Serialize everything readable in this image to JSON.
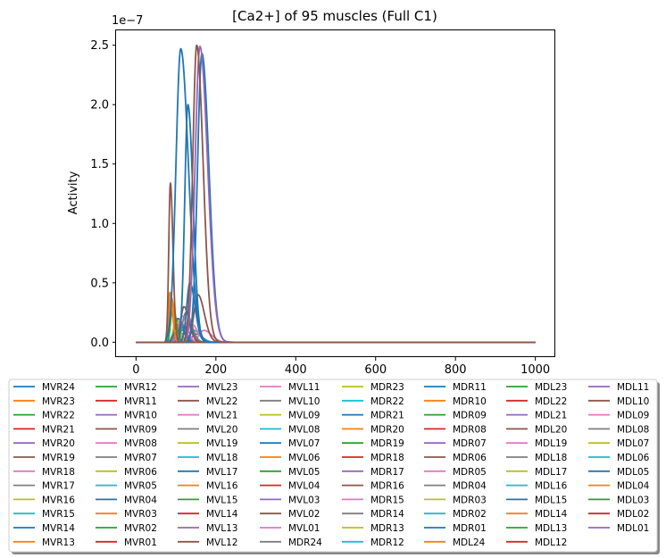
{
  "chart_data": {
    "type": "line",
    "title": "[Ca2+] of 95 muscles (Full C1)",
    "xlabel": "",
    "ylabel": "Activity",
    "y_offset_text": "1e−7",
    "y_scale_factor": 1e-07,
    "xlim": [
      -50,
      1050
    ],
    "ylim": [
      -0.125,
      2.625
    ],
    "x_ticks": [
      0,
      200,
      400,
      600,
      800,
      1000
    ],
    "y_ticks": [
      0.0,
      0.5,
      1.0,
      1.5,
      2.0,
      2.5
    ],
    "y_tick_labels": [
      "0.0",
      "0.5",
      "1.0",
      "1.5",
      "2.0",
      "2.5"
    ],
    "x_tick_labels": [
      "0",
      "200",
      "400",
      "600",
      "800",
      "1000"
    ],
    "grid": false,
    "legend_placement": "below plot, 8 columns",
    "x_end": 1000,
    "color_cycle": [
      "#1f77b4",
      "#ff7f0e",
      "#2ca02c",
      "#d62728",
      "#9467bd",
      "#8c564b",
      "#e377c2",
      "#7f7f7f",
      "#bcbd22",
      "#17becf"
    ],
    "series_names": [
      "MVR24",
      "MVR23",
      "MVR22",
      "MVR21",
      "MVR20",
      "MVR19",
      "MVR18",
      "MVR17",
      "MVR16",
      "MVR15",
      "MVR14",
      "MVR13",
      "MVR12",
      "MVR11",
      "MVR10",
      "MVR09",
      "MVR08",
      "MVR07",
      "MVR06",
      "MVR05",
      "MVR04",
      "MVR03",
      "MVR02",
      "MVR01",
      "MVL23",
      "MVL22",
      "MVL21",
      "MVL20",
      "MVL19",
      "MVL18",
      "MVL17",
      "MVL16",
      "MVL15",
      "MVL14",
      "MVL13",
      "MVL12",
      "MVL11",
      "MVL10",
      "MVL09",
      "MVL08",
      "MVL07",
      "MVL06",
      "MVL05",
      "MVL04",
      "MVL03",
      "MVL02",
      "MVL01",
      "MDR24",
      "MDR23",
      "MDR22",
      "MDR21",
      "MDR20",
      "MDR19",
      "MDR18",
      "MDR17",
      "MDR16",
      "MDR15",
      "MDR14",
      "MDR13",
      "MDR12",
      "MDR11",
      "MDR10",
      "MDR09",
      "MDR08",
      "MDR07",
      "MDR06",
      "MDR05",
      "MDR04",
      "MDR03",
      "MDR02",
      "MDR01",
      "MDL24",
      "MDL23",
      "MDL22",
      "MDL21",
      "MDL20",
      "MDL19",
      "MDL18",
      "MDL17",
      "MDL16",
      "MDL15",
      "MDL14",
      "MDL13",
      "MDL12",
      "MDL11",
      "MDL10",
      "MDL09",
      "MDL08",
      "MDL07",
      "MDL06",
      "MDL05",
      "MDL04",
      "MDL03",
      "MDL02",
      "MDL01"
    ],
    "peaks": [
      {
        "series": "MVR24",
        "peak_x": 165,
        "peak_y": 2.43,
        "width": 11
      },
      {
        "series": "MVR22",
        "peak_x": 95,
        "peak_y": 0.06,
        "width": 6
      },
      {
        "series": "MVR21",
        "peak_x": 100,
        "peak_y": 0.12,
        "width": 7
      },
      {
        "series": "MVR20",
        "peak_x": 110,
        "peak_y": 0.18,
        "width": 8
      },
      {
        "series": "MVR18",
        "peak_x": 115,
        "peak_y": 0.22,
        "width": 8
      },
      {
        "series": "MVR16",
        "peak_x": 105,
        "peak_y": 0.09,
        "width": 7
      },
      {
        "series": "MVR14",
        "peak_x": 135,
        "peak_y": 0.5,
        "width": 8
      },
      {
        "series": "MVR13",
        "peak_x": 85,
        "peak_y": 0.42,
        "width": 4
      },
      {
        "series": "MVR12",
        "peak_x": 92,
        "peak_y": 0.32,
        "width": 5
      },
      {
        "series": "MVR09",
        "peak_x": 120,
        "peak_y": 0.3,
        "width": 8
      },
      {
        "series": "MVR06",
        "peak_x": 100,
        "peak_y": 0.2,
        "width": 6
      },
      {
        "series": "MVR04",
        "peak_x": 130,
        "peak_y": 2.0,
        "width": 8
      },
      {
        "series": "MVR03",
        "peak_x": 88,
        "peak_y": 0.38,
        "width": 5
      },
      {
        "series": "MVL21",
        "peak_x": 140,
        "peak_y": 0.15,
        "width": 9
      },
      {
        "series": "MVL20",
        "peak_x": 125,
        "peak_y": 0.25,
        "width": 9
      },
      {
        "series": "MVL17",
        "peak_x": 105,
        "peak_y": 0.2,
        "width": 8
      },
      {
        "series": "MVL13",
        "peak_x": 160,
        "peak_y": 2.49,
        "width": 12
      },
      {
        "series": "MVL12",
        "peak_x": 155,
        "peak_y": 0.4,
        "width": 10
      },
      {
        "series": "MVL09",
        "peak_x": 145,
        "peak_y": 0.1,
        "width": 9
      },
      {
        "series": "MVL07",
        "peak_x": 112,
        "peak_y": 2.47,
        "width": 12
      },
      {
        "series": "MVL02",
        "peak_x": 86,
        "peak_y": 1.34,
        "width": 4
      },
      {
        "series": "MDR23",
        "peak_x": 100,
        "peak_y": 0.12,
        "width": 7
      },
      {
        "series": "MDR21",
        "peak_x": 130,
        "peak_y": 0.15,
        "width": 8
      },
      {
        "series": "MDR19",
        "peak_x": 115,
        "peak_y": 0.1,
        "width": 8
      },
      {
        "series": "MDR16",
        "peak_x": 152,
        "peak_y": 2.5,
        "width": 10
      },
      {
        "series": "MDR15",
        "peak_x": 170,
        "peak_y": 0.1,
        "width": 12
      },
      {
        "series": "MDR12",
        "peak_x": 145,
        "peak_y": 0.1,
        "width": 10
      },
      {
        "series": "MDR09",
        "peak_x": 95,
        "peak_y": 0.08,
        "width": 6
      },
      {
        "series": "MDR06",
        "peak_x": 110,
        "peak_y": 0.14,
        "width": 8
      },
      {
        "series": "MDL22",
        "peak_x": 95,
        "peak_y": 0.05,
        "width": 6
      },
      {
        "series": "MDL18",
        "peak_x": 120,
        "peak_y": 0.08,
        "width": 8
      },
      {
        "series": "MDL14",
        "peak_x": 100,
        "peak_y": 0.05,
        "width": 7
      },
      {
        "series": "MDL11",
        "peak_x": 150,
        "peak_y": 0.07,
        "width": 10
      }
    ]
  }
}
